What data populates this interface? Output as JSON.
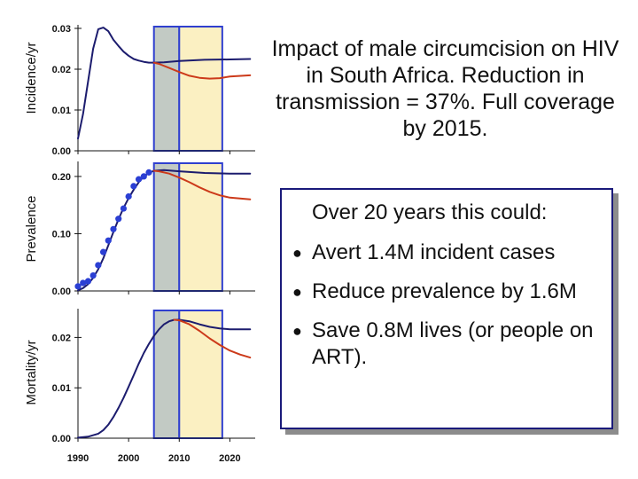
{
  "caption": "Impact of male circumcision on HIV in South Africa. Reduction in transmission = 37%. Full coverage by 2015.",
  "summary_box": {
    "heading": "Over 20 years this could:",
    "items": [
      "Avert 1.4M incident cases",
      "Reduce prevalence by 1.6M",
      "Save 0.8M lives (or people on ART)."
    ]
  },
  "colors": {
    "no_intervention": "#1c1c6e",
    "with_circumcision": "#cc3a1a",
    "observed_points": "#2b3fd4",
    "rollout_shade": "#c2cac4",
    "full_coverage_shade": "#fbf0c2",
    "band_border": "#2f3fcf"
  },
  "chart_data": [
    {
      "type": "line",
      "title": "",
      "xlabel": "",
      "ylabel": "Incidence/yr",
      "xlim": [
        1990,
        2025
      ],
      "ylim": [
        0,
        0.03
      ],
      "x_ticks": [
        1990,
        2000,
        2010,
        2020
      ],
      "x_tick_labels": [
        "1990",
        "2000",
        "2010",
        "2020"
      ],
      "show_x_tick_labels": true,
      "y_ticks": [
        0,
        0.01,
        0.02,
        0.03
      ],
      "y_tick_labels": [
        "0.00",
        "0.01",
        "0.02",
        "0.03"
      ],
      "shaded_bands": [
        {
          "from": 2005,
          "to": 2010,
          "color": "rollout"
        },
        {
          "from": 2010,
          "to": 2018.5,
          "color": "full_coverage"
        }
      ],
      "series": [
        {
          "color": "no_intervention",
          "x": [
            1990,
            1991,
            1992,
            1993,
            1994,
            1995,
            1996,
            1997,
            1998,
            1999,
            2000,
            2001,
            2002,
            2003,
            2004,
            2005,
            2007,
            2010,
            2015,
            2020,
            2024
          ],
          "values": [
            0.003,
            0.009,
            0.017,
            0.025,
            0.0298,
            0.0302,
            0.0293,
            0.0272,
            0.0257,
            0.0243,
            0.0233,
            0.0225,
            0.0221,
            0.0218,
            0.0216,
            0.0216,
            0.0217,
            0.022,
            0.0223,
            0.0224,
            0.0225
          ]
        },
        {
          "color": "with_circumcision",
          "x": [
            2005,
            2006,
            2008,
            2010,
            2012,
            2014,
            2016,
            2018,
            2020,
            2024
          ],
          "values": [
            0.0216,
            0.0213,
            0.0203,
            0.0193,
            0.0184,
            0.0179,
            0.0177,
            0.0178,
            0.0182,
            0.0185
          ]
        }
      ]
    },
    {
      "type": "line",
      "title": "",
      "xlabel": "",
      "ylabel": "Prevalence",
      "xlim": [
        1990,
        2025
      ],
      "ylim": [
        0,
        0.22
      ],
      "x_ticks": [
        1990,
        2000,
        2010,
        2020
      ],
      "x_tick_labels": [],
      "show_x_tick_labels": false,
      "y_ticks": [
        0,
        0.1,
        0.2
      ],
      "y_tick_labels": [
        "0.00",
        "0.10",
        "0.20"
      ],
      "shaded_bands": [
        {
          "from": 2005,
          "to": 2010,
          "color": "rollout"
        },
        {
          "from": 2010,
          "to": 2018.5,
          "color": "full_coverage"
        }
      ],
      "series": [
        {
          "color": "no_intervention",
          "x": [
            1990,
            1991,
            1992,
            1993,
            1994,
            1995,
            1996,
            1997,
            1998,
            1999,
            2000,
            2001,
            2002,
            2003,
            2004,
            2005,
            2007,
            2010,
            2015,
            2020,
            2024
          ],
          "values": [
            0.001,
            0.005,
            0.012,
            0.023,
            0.038,
            0.057,
            0.08,
            0.103,
            0.125,
            0.145,
            0.162,
            0.177,
            0.19,
            0.2,
            0.206,
            0.21,
            0.211,
            0.209,
            0.206,
            0.205,
            0.205
          ]
        },
        {
          "color": "with_circumcision",
          "x": [
            2005,
            2006,
            2008,
            2010,
            2012,
            2014,
            2016,
            2018,
            2020,
            2024
          ],
          "values": [
            0.21,
            0.209,
            0.205,
            0.198,
            0.19,
            0.181,
            0.173,
            0.167,
            0.163,
            0.16
          ]
        },
        {
          "color": "observed_points",
          "type": "scatter",
          "x": [
            1990,
            1991,
            1992,
            1993,
            1994,
            1995,
            1996,
            1997,
            1998,
            1999,
            2000,
            2001,
            2002,
            2003,
            2004
          ],
          "values": [
            0.008,
            0.014,
            0.017,
            0.027,
            0.045,
            0.068,
            0.088,
            0.108,
            0.126,
            0.144,
            0.165,
            0.183,
            0.195,
            0.2,
            0.207
          ]
        }
      ]
    },
    {
      "type": "line",
      "title": "",
      "xlabel": "",
      "ylabel": "Mortality/yr",
      "xlim": [
        1990,
        2025
      ],
      "ylim": [
        0,
        0.025
      ],
      "x_ticks": [
        1990,
        2000,
        2010,
        2020
      ],
      "x_tick_labels": [
        "1990",
        "2000",
        "2010",
        "2020"
      ],
      "show_x_tick_labels": true,
      "y_ticks": [
        0,
        0.01,
        0.02
      ],
      "y_tick_labels": [
        "0.00",
        "0.01",
        "0.02"
      ],
      "shaded_bands": [
        {
          "from": 2005,
          "to": 2010,
          "color": "rollout"
        },
        {
          "from": 2010,
          "to": 2018.5,
          "color": "full_coverage"
        }
      ],
      "series": [
        {
          "color": "no_intervention",
          "x": [
            1990,
            1992,
            1994,
            1995,
            1996,
            1997,
            1998,
            1999,
            2000,
            2001,
            2002,
            2003,
            2004,
            2005,
            2006,
            2007,
            2008,
            2009,
            2010,
            2012,
            2014,
            2016,
            2018,
            2020,
            2024
          ],
          "values": [
            0.0001,
            0.0003,
            0.0009,
            0.0016,
            0.0027,
            0.0042,
            0.006,
            0.008,
            0.0102,
            0.0125,
            0.0148,
            0.0169,
            0.0187,
            0.0203,
            0.0216,
            0.0226,
            0.0232,
            0.0235,
            0.0235,
            0.0232,
            0.0226,
            0.0221,
            0.0218,
            0.0216,
            0.0216
          ]
        },
        {
          "color": "with_circumcision",
          "x": [
            2009,
            2010,
            2012,
            2014,
            2016,
            2018,
            2020,
            2022,
            2024
          ],
          "values": [
            0.0235,
            0.0234,
            0.0226,
            0.0213,
            0.0198,
            0.0185,
            0.0174,
            0.0166,
            0.016
          ]
        }
      ]
    }
  ]
}
